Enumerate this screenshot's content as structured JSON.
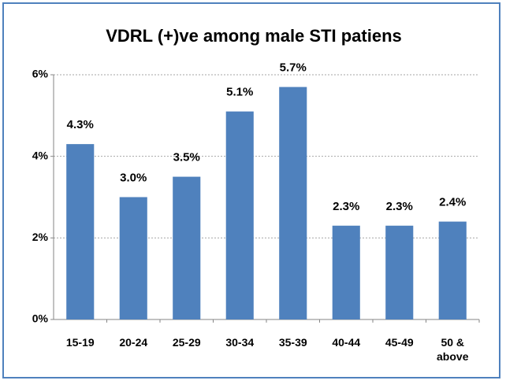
{
  "chart_data": {
    "type": "bar",
    "title": "VDRL (+)ve among male STI patiens",
    "categories": [
      "15-19",
      "20-24",
      "25-29",
      "30-34",
      "35-39",
      "40-44",
      "45-49",
      "50 & above"
    ],
    "values": [
      4.3,
      3.0,
      3.5,
      5.1,
      5.7,
      2.3,
      2.3,
      2.4
    ],
    "value_labels": [
      "4.3%",
      "3.0%",
      "3.5%",
      "5.1%",
      "5.7%",
      "2.3%",
      "2.3%",
      "2.4%"
    ],
    "color": "#4f81bd",
    "ylim": [
      0,
      6
    ],
    "yticks": [
      {
        "value": 0,
        "label": "0%"
      },
      {
        "value": 2,
        "label": "2%"
      },
      {
        "value": 4,
        "label": "4%"
      },
      {
        "value": 6,
        "label": "6%"
      }
    ],
    "grid": true
  }
}
